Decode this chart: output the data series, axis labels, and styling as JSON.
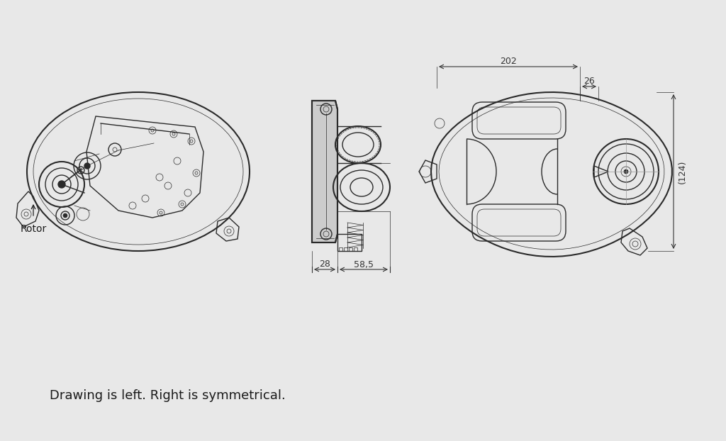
{
  "background_color": "#e8e8e8",
  "line_color": "#2a2a2a",
  "dimension_color": "#333333",
  "text_color": "#1a1a1a",
  "note_text": "Drawing is left. Right is symmetrical.",
  "rotor_label": "Rotor",
  "dim_202": "202",
  "dim_26": "26",
  "dim_124": "(124)",
  "dim_28": "28",
  "dim_58_5": "58,5",
  "lw": 1.0,
  "lw_thick": 1.5,
  "lw_thin": 0.5
}
